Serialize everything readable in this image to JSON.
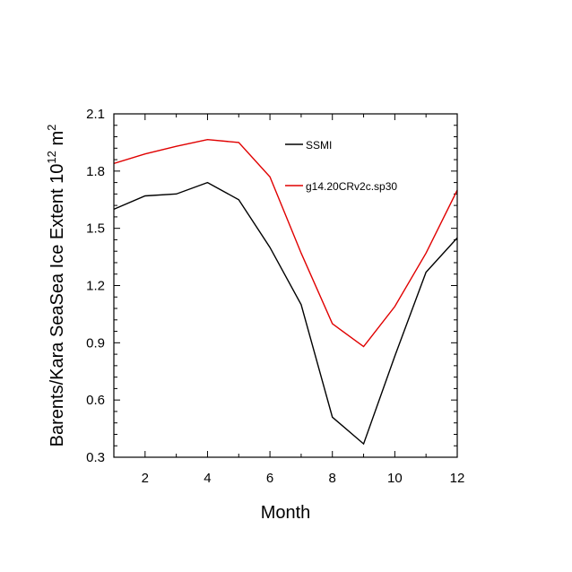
{
  "chart_data": {
    "type": "line",
    "xlabel": "Month",
    "ylabel_main": "Barents/Kara SeaSea Ice Extent 10",
    "ylabel_sup": "12",
    "ylabel_unit": " m",
    "ylabel_unit_sup": "2",
    "xlim": [
      1,
      12
    ],
    "ylim": [
      0.3,
      2.1
    ],
    "x_ticks": [
      2,
      4,
      6,
      8,
      10,
      12
    ],
    "x_tick_labels": [
      "2",
      "4",
      "6",
      "8",
      "10",
      "12"
    ],
    "y_ticks": [
      0.3,
      0.6,
      0.9,
      1.2,
      1.5,
      1.8,
      2.1
    ],
    "y_tick_labels": [
      "0.3",
      "0.6",
      "0.9",
      "1.2",
      "1.5",
      "1.8",
      "2.1"
    ],
    "legend_position": "top-right",
    "x": [
      1,
      2,
      3,
      4,
      5,
      6,
      7,
      8,
      9,
      10,
      11,
      12
    ],
    "series": [
      {
        "name": "SSMI",
        "color": "#000000",
        "values": [
          1.6,
          1.67,
          1.68,
          1.74,
          1.65,
          1.4,
          1.1,
          0.51,
          0.37,
          0.83,
          1.27,
          1.45
        ]
      },
      {
        "name": "g14.20CRv2c.sp30",
        "color": "#e00000",
        "values": [
          1.84,
          1.89,
          1.93,
          1.965,
          1.95,
          1.77,
          1.37,
          1.0,
          0.88,
          1.09,
          1.37,
          1.7
        ]
      }
    ]
  }
}
